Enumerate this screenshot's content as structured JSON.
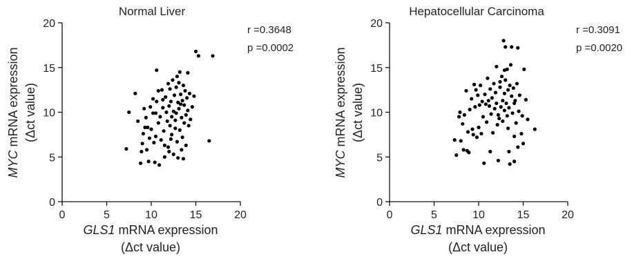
{
  "chart_data": [
    {
      "type": "scatter",
      "title": "Normal Liver",
      "xlabel_italic": "GLS1",
      "xlabel_rest": " mRNA expression",
      "xlabel_line2": "(Δct value)",
      "ylabel_italic": "MYC",
      "ylabel_rest": " mRNA expression",
      "ylabel_line2": "(Δct value)",
      "xlim": [
        0,
        20
      ],
      "ylim": [
        0,
        20
      ],
      "xticks": [
        "0",
        "5",
        "10",
        "15",
        "20"
      ],
      "yticks": [
        "0",
        "5",
        "10",
        "15",
        "20"
      ],
      "stat_r": "r =0.3648",
      "stat_p": "p =0.0002",
      "grid": false,
      "points": [
        [
          7.2,
          5.9
        ],
        [
          7.5,
          10.0
        ],
        [
          8.2,
          12.1
        ],
        [
          8.5,
          9.0
        ],
        [
          8.8,
          4.3
        ],
        [
          8.9,
          5.6
        ],
        [
          9.0,
          6.5
        ],
        [
          9.1,
          7.6
        ],
        [
          9.2,
          10.4
        ],
        [
          9.3,
          8.3
        ],
        [
          9.4,
          9.4
        ],
        [
          9.5,
          5.8
        ],
        [
          9.7,
          4.5
        ],
        [
          9.8,
          7.1
        ],
        [
          9.9,
          10.6
        ],
        [
          10.0,
          8.1
        ],
        [
          10.2,
          9.9
        ],
        [
          10.3,
          6.6
        ],
        [
          10.4,
          4.4
        ],
        [
          10.5,
          7.3
        ],
        [
          10.6,
          14.7
        ],
        [
          10.6,
          11.2
        ],
        [
          10.8,
          8.8
        ],
        [
          10.9,
          4.1
        ],
        [
          11.0,
          9.5
        ],
        [
          11.1,
          6.9
        ],
        [
          11.2,
          12.5
        ],
        [
          11.3,
          10.5
        ],
        [
          11.4,
          7.9
        ],
        [
          11.5,
          5.0
        ],
        [
          11.6,
          11.7
        ],
        [
          11.8,
          9.0
        ],
        [
          11.9,
          13.2
        ],
        [
          11.9,
          6.1
        ],
        [
          12.0,
          10.7
        ],
        [
          12.1,
          8.5
        ],
        [
          12.1,
          12.6
        ],
        [
          12.2,
          11.2
        ],
        [
          12.3,
          9.5
        ],
        [
          12.3,
          7.5
        ],
        [
          12.4,
          13.6
        ],
        [
          12.5,
          10.1
        ],
        [
          12.5,
          5.3
        ],
        [
          12.6,
          11.9
        ],
        [
          12.7,
          8.2
        ],
        [
          12.8,
          12.8
        ],
        [
          12.8,
          9.9
        ],
        [
          12.9,
          14.0
        ],
        [
          12.9,
          6.7
        ],
        [
          13.0,
          11.1
        ],
        [
          13.0,
          4.9
        ],
        [
          13.1,
          13.3
        ],
        [
          13.1,
          10.4
        ],
        [
          13.2,
          8.0
        ],
        [
          13.2,
          14.5
        ],
        [
          13.3,
          12.0
        ],
        [
          13.4,
          9.4
        ],
        [
          13.4,
          5.8
        ],
        [
          13.5,
          11.3
        ],
        [
          13.5,
          7.2
        ],
        [
          13.6,
          13.0
        ],
        [
          13.7,
          10.8
        ],
        [
          13.7,
          8.8
        ],
        [
          13.8,
          12.4
        ],
        [
          13.9,
          9.7
        ],
        [
          13.9,
          6.3
        ],
        [
          14.0,
          11.6
        ],
        [
          14.1,
          10.2
        ],
        [
          14.1,
          14.4
        ],
        [
          14.2,
          8.5
        ],
        [
          14.3,
          12.1
        ],
        [
          14.4,
          9.2
        ],
        [
          14.6,
          10.6
        ],
        [
          14.8,
          11.8
        ],
        [
          11.5,
          6.3
        ],
        [
          12.0,
          5.6
        ],
        [
          10.8,
          12.4
        ],
        [
          10.2,
          11.5
        ],
        [
          9.6,
          8.3
        ],
        [
          11.3,
          11.4
        ],
        [
          12.7,
          9.1
        ],
        [
          13.3,
          10.9
        ],
        [
          11.7,
          10.0
        ],
        [
          10.5,
          9.9
        ],
        [
          12.2,
          7.0
        ],
        [
          15.0,
          16.8
        ],
        [
          15.3,
          16.3
        ],
        [
          16.5,
          6.8
        ],
        [
          16.9,
          16.3
        ],
        [
          13.6,
          4.8
        ]
      ]
    },
    {
      "type": "scatter",
      "title": "Hepatocellular Carcinoma",
      "xlabel_italic": "GLS1",
      "xlabel_rest": " mRNA expression",
      "xlabel_line2": "(Δct value)",
      "ylabel_italic": "MYC",
      "ylabel_rest": " mRNA expression",
      "ylabel_line2": "(Δct value)",
      "xlim": [
        0,
        20
      ],
      "ylim": [
        0,
        20
      ],
      "xticks": [
        "0",
        "5",
        "10",
        "15",
        "20"
      ],
      "yticks": [
        "0",
        "5",
        "10",
        "15",
        "20"
      ],
      "stat_r": "r =0.3091",
      "stat_p": "p =0.0020",
      "grid": false,
      "points": [
        [
          7.3,
          6.9
        ],
        [
          7.5,
          5.2
        ],
        [
          7.8,
          9.5
        ],
        [
          7.9,
          10.0
        ],
        [
          8.0,
          6.8
        ],
        [
          8.2,
          8.7
        ],
        [
          8.3,
          5.8
        ],
        [
          8.4,
          9.7
        ],
        [
          8.6,
          12.4
        ],
        [
          8.7,
          5.7
        ],
        [
          8.8,
          7.8
        ],
        [
          8.9,
          5.5
        ],
        [
          9.0,
          10.3
        ],
        [
          9.2,
          11.5
        ],
        [
          9.3,
          8.1
        ],
        [
          9.4,
          7.5
        ],
        [
          9.5,
          13.1
        ],
        [
          9.6,
          10.6
        ],
        [
          9.7,
          12.5
        ],
        [
          9.8,
          7.2
        ],
        [
          9.9,
          11.9
        ],
        [
          10.0,
          8.3
        ],
        [
          10.1,
          10.8
        ],
        [
          10.2,
          13.0
        ],
        [
          10.3,
          7.6
        ],
        [
          10.4,
          11.2
        ],
        [
          10.5,
          9.5
        ],
        [
          10.6,
          4.3
        ],
        [
          10.7,
          12.0
        ],
        [
          10.8,
          10.9
        ],
        [
          10.9,
          8.9
        ],
        [
          11.0,
          13.8
        ],
        [
          11.1,
          11.3
        ],
        [
          11.2,
          10.7
        ],
        [
          11.3,
          12.6
        ],
        [
          11.4,
          9.8
        ],
        [
          11.5,
          11.6
        ],
        [
          11.6,
          7.7
        ],
        [
          11.7,
          13.2
        ],
        [
          11.8,
          10.4
        ],
        [
          11.9,
          12.2
        ],
        [
          12.0,
          11.0
        ],
        [
          12.0,
          15.1
        ],
        [
          12.1,
          8.6
        ],
        [
          12.2,
          4.6
        ],
        [
          12.3,
          9.3
        ],
        [
          12.4,
          12.8
        ],
        [
          12.5,
          10.6
        ],
        [
          12.6,
          14.0
        ],
        [
          12.7,
          11.3
        ],
        [
          12.7,
          9.0
        ],
        [
          12.8,
          18.0
        ],
        [
          12.9,
          12.1
        ],
        [
          12.9,
          10.2
        ],
        [
          13.0,
          13.6
        ],
        [
          13.0,
          17.3
        ],
        [
          13.1,
          11.0
        ],
        [
          13.2,
          9.6
        ],
        [
          13.2,
          14.8
        ],
        [
          13.3,
          12.5
        ],
        [
          13.4,
          5.6
        ],
        [
          13.4,
          10.5
        ],
        [
          13.5,
          4.2
        ],
        [
          13.5,
          13.0
        ],
        [
          13.6,
          15.3
        ],
        [
          13.7,
          11.8
        ],
        [
          13.7,
          17.3
        ],
        [
          13.8,
          9.9
        ],
        [
          13.9,
          12.7
        ],
        [
          14.0,
          4.5
        ],
        [
          14.0,
          7.3
        ],
        [
          14.1,
          11.3
        ],
        [
          14.2,
          8.8
        ],
        [
          14.3,
          13.2
        ],
        [
          14.4,
          17.2
        ],
        [
          14.5,
          10.1
        ],
        [
          14.6,
          11.9
        ],
        [
          14.8,
          7.6
        ],
        [
          14.9,
          9.6
        ],
        [
          15.0,
          6.5
        ],
        [
          15.1,
          14.8
        ],
        [
          15.3,
          11.4
        ],
        [
          15.5,
          9.2
        ],
        [
          16.3,
          8.1
        ],
        [
          14.0,
          11.0
        ],
        [
          13.3,
          8.2
        ],
        [
          12.4,
          13.4
        ],
        [
          11.3,
          5.6
        ],
        [
          14.4,
          6.1
        ],
        [
          12.2,
          9.7
        ],
        [
          12.9,
          14.7
        ]
      ]
    }
  ]
}
